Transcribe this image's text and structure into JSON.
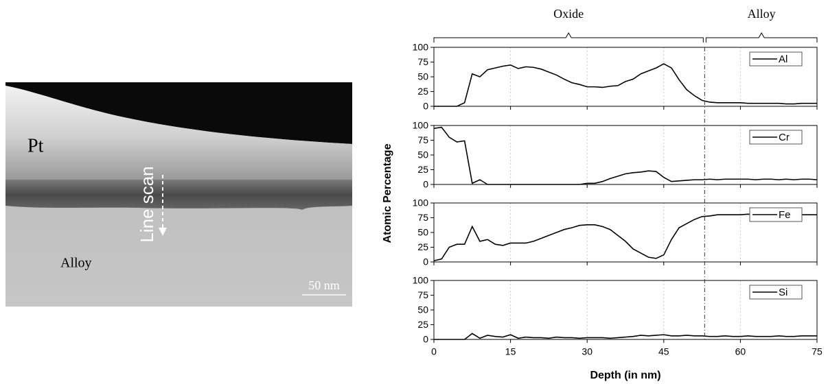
{
  "image": {
    "labels": [
      "Pt",
      "Line scan",
      "Alloy"
    ],
    "scale_bar": "50 nm"
  },
  "figure": {
    "xlabel": "Depth (in nm)",
    "ylabel": "Atomic Percentage",
    "regions": [
      {
        "label": "Oxide",
        "from": 0,
        "to": 53
      },
      {
        "label": "Alloy",
        "from": 53,
        "to": 75
      }
    ]
  },
  "chart_data": [
    {
      "type": "line",
      "xlim": [
        0,
        75
      ],
      "ylim": [
        0,
        100
      ],
      "yticks": [
        0,
        25,
        50,
        75,
        100
      ],
      "grid": true,
      "legend": "upper right",
      "x": [
        0,
        1.5,
        3,
        4.5,
        6,
        7.5,
        9,
        10.5,
        12,
        13.5,
        15,
        16.5,
        18,
        19.5,
        21,
        22.5,
        24,
        25.5,
        27,
        28.5,
        30,
        31.5,
        33,
        34.5,
        36,
        37.5,
        39,
        40.5,
        42,
        43.5,
        45,
        46.5,
        48,
        49.5,
        51,
        52.5,
        54,
        55.5,
        57,
        58.5,
        60,
        61.5,
        63,
        64.5,
        66,
        67.5,
        69,
        70.5,
        72,
        73.5,
        75
      ],
      "series": [
        {
          "name": "Al",
          "color": "#000000",
          "values": [
            0,
            0,
            0,
            0,
            6,
            55,
            50,
            62,
            65,
            68,
            70,
            64,
            67,
            66,
            63,
            58,
            53,
            46,
            40,
            37,
            33,
            33,
            32,
            34,
            35,
            42,
            46,
            55,
            60,
            65,
            72,
            65,
            45,
            28,
            18,
            10,
            7,
            6,
            6,
            6,
            6,
            5,
            5,
            5,
            5,
            5,
            4,
            4,
            5,
            5,
            5
          ]
        }
      ]
    },
    {
      "type": "line",
      "xlim": [
        0,
        75
      ],
      "ylim": [
        0,
        100
      ],
      "yticks": [
        0,
        25,
        50,
        75,
        100
      ],
      "grid": true,
      "legend": "upper right",
      "x": [
        0,
        1.5,
        3,
        4.5,
        6,
        7.5,
        9,
        10.5,
        12,
        13.5,
        15,
        16.5,
        18,
        19.5,
        21,
        22.5,
        24,
        25.5,
        27,
        28.5,
        30,
        31.5,
        33,
        34.5,
        36,
        37.5,
        39,
        40.5,
        42,
        43.5,
        45,
        46.5,
        48,
        49.5,
        51,
        52.5,
        54,
        55.5,
        57,
        58.5,
        60,
        61.5,
        63,
        64.5,
        66,
        67.5,
        69,
        70.5,
        72,
        73.5,
        75
      ],
      "series": [
        {
          "name": "Cr",
          "color": "#000000",
          "values": [
            95,
            97,
            80,
            72,
            74,
            2,
            8,
            0,
            0,
            0,
            0,
            0,
            0,
            0,
            0,
            0,
            0,
            0,
            0,
            0,
            2,
            2,
            5,
            10,
            14,
            18,
            20,
            21,
            23,
            22,
            12,
            5,
            6,
            7,
            8,
            8,
            9,
            8,
            9,
            9,
            9,
            9,
            8,
            9,
            9,
            8,
            9,
            8,
            9,
            9,
            8
          ]
        }
      ]
    },
    {
      "type": "line",
      "xlim": [
        0,
        75
      ],
      "ylim": [
        0,
        100
      ],
      "yticks": [
        0,
        25,
        50,
        75,
        100
      ],
      "grid": true,
      "legend": "upper right",
      "x": [
        0,
        1.5,
        3,
        4.5,
        6,
        7.5,
        9,
        10.5,
        12,
        13.5,
        15,
        16.5,
        18,
        19.5,
        21,
        22.5,
        24,
        25.5,
        27,
        28.5,
        30,
        31.5,
        33,
        34.5,
        36,
        37.5,
        39,
        40.5,
        42,
        43.5,
        45,
        46.5,
        48,
        49.5,
        51,
        52.5,
        54,
        55.5,
        57,
        58.5,
        60,
        61.5,
        63,
        64.5,
        66,
        67.5,
        69,
        70.5,
        72,
        73.5,
        75
      ],
      "series": [
        {
          "name": "Fe",
          "color": "#000000",
          "values": [
            2,
            5,
            25,
            30,
            30,
            60,
            35,
            38,
            30,
            28,
            32,
            32,
            32,
            35,
            40,
            45,
            50,
            55,
            58,
            62,
            63,
            63,
            60,
            55,
            45,
            35,
            22,
            15,
            8,
            6,
            12,
            38,
            58,
            65,
            72,
            77,
            78,
            80,
            80,
            80,
            80,
            81,
            80,
            80,
            81,
            81,
            80,
            81,
            80,
            80,
            80
          ]
        }
      ]
    },
    {
      "type": "line",
      "xlim": [
        0,
        75
      ],
      "ylim": [
        0,
        100
      ],
      "yticks": [
        0,
        25,
        50,
        75,
        100
      ],
      "grid": true,
      "legend": "upper right",
      "xticks": [
        0,
        15,
        30,
        45,
        60,
        75
      ],
      "x": [
        0,
        1.5,
        3,
        4.5,
        6,
        7.5,
        9,
        10.5,
        12,
        13.5,
        15,
        16.5,
        18,
        19.5,
        21,
        22.5,
        24,
        25.5,
        27,
        28.5,
        30,
        31.5,
        33,
        34.5,
        36,
        37.5,
        39,
        40.5,
        42,
        43.5,
        45,
        46.5,
        48,
        49.5,
        51,
        52.5,
        54,
        55.5,
        57,
        58.5,
        60,
        61.5,
        63,
        64.5,
        66,
        67.5,
        69,
        70.5,
        72,
        73.5,
        75
      ],
      "series": [
        {
          "name": "Si",
          "color": "#000000",
          "values": [
            0,
            0,
            0,
            0,
            0,
            10,
            2,
            7,
            5,
            4,
            8,
            2,
            4,
            3,
            3,
            2,
            4,
            3,
            3,
            2,
            3,
            3,
            3,
            2,
            3,
            4,
            5,
            7,
            6,
            7,
            8,
            6,
            6,
            7,
            6,
            6,
            5,
            5,
            6,
            5,
            5,
            6,
            5,
            5,
            5,
            6,
            5,
            5,
            6,
            6,
            6
          ]
        }
      ]
    }
  ]
}
